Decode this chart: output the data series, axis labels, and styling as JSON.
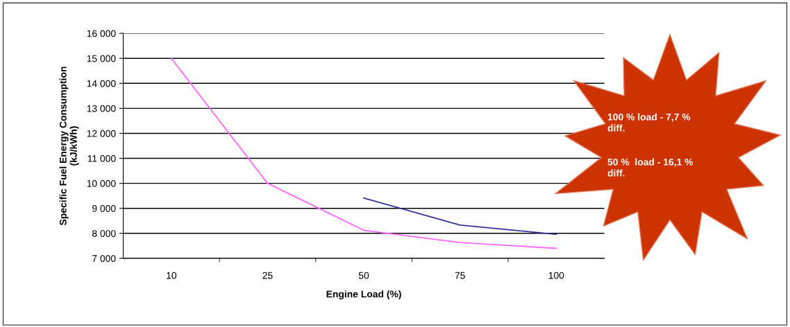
{
  "chart_data": {
    "type": "line",
    "xlabel": "Engine Load (%)",
    "ylabel": "Specific Fuel Energy Consumption\n(kJ/kWh)",
    "categories": [
      "10",
      "25",
      "50",
      "75",
      "100"
    ],
    "series": [
      {
        "color": "#ff66ff",
        "values": [
          15000,
          10000,
          8120,
          7630,
          7400
        ]
      },
      {
        "color": "#333399",
        "values": [
          null,
          null,
          9410,
          8330,
          7960
        ]
      }
    ],
    "ylim": [
      7000,
      16000
    ],
    "yticks": [
      {
        "value": 7000,
        "label": "7 000"
      },
      {
        "value": 8000,
        "label": "8 000"
      },
      {
        "value": 9000,
        "label": "9 000"
      },
      {
        "value": 10000,
        "label": "10 000"
      },
      {
        "value": 11000,
        "label": "11 000"
      },
      {
        "value": 12000,
        "label": "12 000"
      },
      {
        "value": 13000,
        "label": "13 000"
      },
      {
        "value": 14000,
        "label": "14 000"
      },
      {
        "value": 15000,
        "label": "15 000"
      },
      {
        "value": 16000,
        "label": "16 000"
      }
    ],
    "grid": "y",
    "legend": false,
    "marker": "none",
    "line_style": "solid",
    "annotations": [
      "100 % load - 7,7 %\ndiff.",
      "50 %  load - 16,1 %\ndiff."
    ]
  }
}
